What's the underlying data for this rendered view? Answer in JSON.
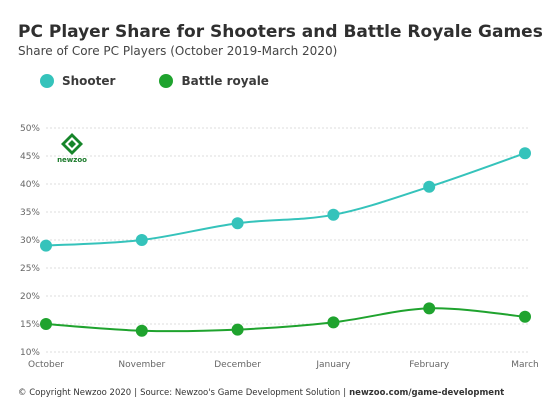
{
  "header": {
    "title": "PC Player Share for Shooters and Battle Royale Games",
    "subtitle": "Share of Core PC Players (October 2019-March 2020)"
  },
  "logo": {
    "text": "newzoo"
  },
  "footer": {
    "copyright": "© Copyright Newzoo 2020",
    "source": "Source: Newzoo's Game Development Solution",
    "link": "newzoo.com/game-development"
  },
  "colors": {
    "shooter": "#35c3bb",
    "battle_royale": "#1fa32e"
  },
  "chart_data": {
    "type": "line",
    "categories": [
      "October",
      "November",
      "December",
      "January",
      "February",
      "March"
    ],
    "series": [
      {
        "name": "Shooter",
        "values": [
          29,
          30,
          33,
          34.5,
          39.5,
          45.5
        ]
      },
      {
        "name": "Battle royale",
        "values": [
          15,
          13.8,
          14,
          15.3,
          17.8,
          16.3
        ]
      }
    ],
    "ylim": [
      10,
      50
    ],
    "yticks": [
      "10%",
      "15%",
      "20%",
      "25%",
      "30%",
      "35%",
      "40%",
      "45%",
      "50%"
    ],
    "grid": true,
    "legend": "top-left"
  }
}
